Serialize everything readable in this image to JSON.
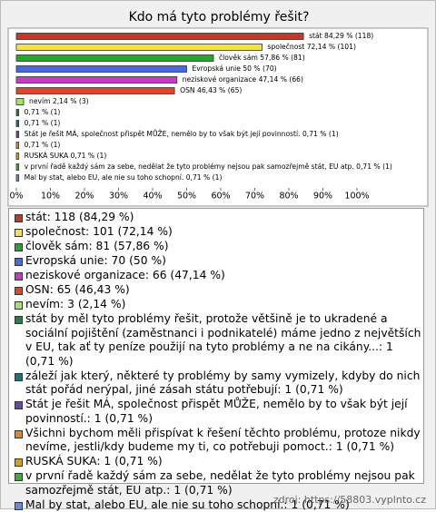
{
  "chart_data": {
    "type": "hbar",
    "title": "Kdo má tyto problémy řešit?",
    "values": [
      84.29,
      72.14,
      57.86,
      50,
      47.14,
      46.43,
      2.14,
      0.71,
      0.71,
      0.71,
      0.71,
      0.71,
      0.71,
      0.71
    ],
    "value_labels": [
      "stát 84,29 % (118)",
      "společnost 72,14 % (101)",
      "člověk sám 57,86 % (81)",
      "Evropská unie 50 % (70)",
      "neziskové organizace 47,14 % (66)",
      "OSN 46,43 % (65)",
      "nevím 2,14 % (3)",
      "0,71 % (1)",
      "0,71 % (1)",
      "Stát je řešit MÁ, společnost přispět MŮŽE, nemělo by to však být její povinností. 0,71 % (1)",
      "0,71 % (1)",
      "RUSKÁ SUKA 0,71 % (1)",
      "v první řadě každý sám za sebe, nedělat že tyto problémy nejsou pak samozřejmě stát, EU atp. 0,71 % (1)",
      "Mal by stat, alebo EU, ale nie su toho schopní. 0,71 % (1)"
    ],
    "legend_labels": [
      "stát: 118 (84,29 %)",
      "společnost: 101 (72,14 %)",
      "člověk sám: 81 (57,86 %)",
      "Evropská unie: 70 (50 %)",
      "neziskové organizace: 66 (47,14 %)",
      "OSN: 65 (46,43 %)",
      "nevím: 3 (2,14 %)",
      "stát by měl tyto problémy řešit, protože většině je to ukradené a sociální pojištění (zaměstnanci i podnikatelé) máme jedno z největších v EU, tak ať ty peníze použijí na tyto problémy a ne na cikány...: 1 (0,71 %)",
      "záleží jak který, některé ty problémy by samy vymizely, kdyby do nich stát pořád nerýpal, jiné zásah státu potřebují: 1 (0,71 %)",
      "Stát je řešit MÁ, společnost přispět MŮŽE, nemělo by to však být její povinností.: 1 (0,71 %)",
      "Všichni bychom měli přispívat k řešení těchto problému, protoze nikdy nevíme, jestli/kdy budeme my ti, co potřebuji pomoct.: 1 (0,71 %)",
      "RUSKÁ SUKA: 1 (0,71 %)",
      "v první řadě každý sám za sebe, nedělat že tyto problémy nejsou pak samozřejmě stát, EU atp.: 1 (0,71 %)",
      "Mal by stat, alebo EU, ale nie su toho schopní.: 1 (0,71 %)"
    ],
    "colors": [
      "#c0392b",
      "#f2e447",
      "#27a62e",
      "#4a68e0",
      "#c43cc4",
      "#e0452a",
      "#a6e066",
      "#23804a",
      "#22707e",
      "#6a48a8",
      "#e2842a",
      "#c9a526",
      "#48a844",
      "#6a8ad0"
    ],
    "xlim": [
      0,
      100
    ],
    "xticks": [
      {
        "value": 0,
        "label": "0%"
      },
      {
        "value": 10,
        "label": "10%"
      },
      {
        "value": 20,
        "label": "20%"
      },
      {
        "value": 30,
        "label": "30%"
      },
      {
        "value": 40,
        "label": "40%"
      },
      {
        "value": 50,
        "label": "50%"
      },
      {
        "value": 60,
        "label": "60%"
      },
      {
        "value": 70,
        "label": "70%"
      },
      {
        "value": 80,
        "label": "80%"
      },
      {
        "value": 90,
        "label": "90%"
      },
      {
        "value": 100,
        "label": "100%"
      }
    ],
    "source": "zdroj: https://58803.vyplnto.cz"
  }
}
